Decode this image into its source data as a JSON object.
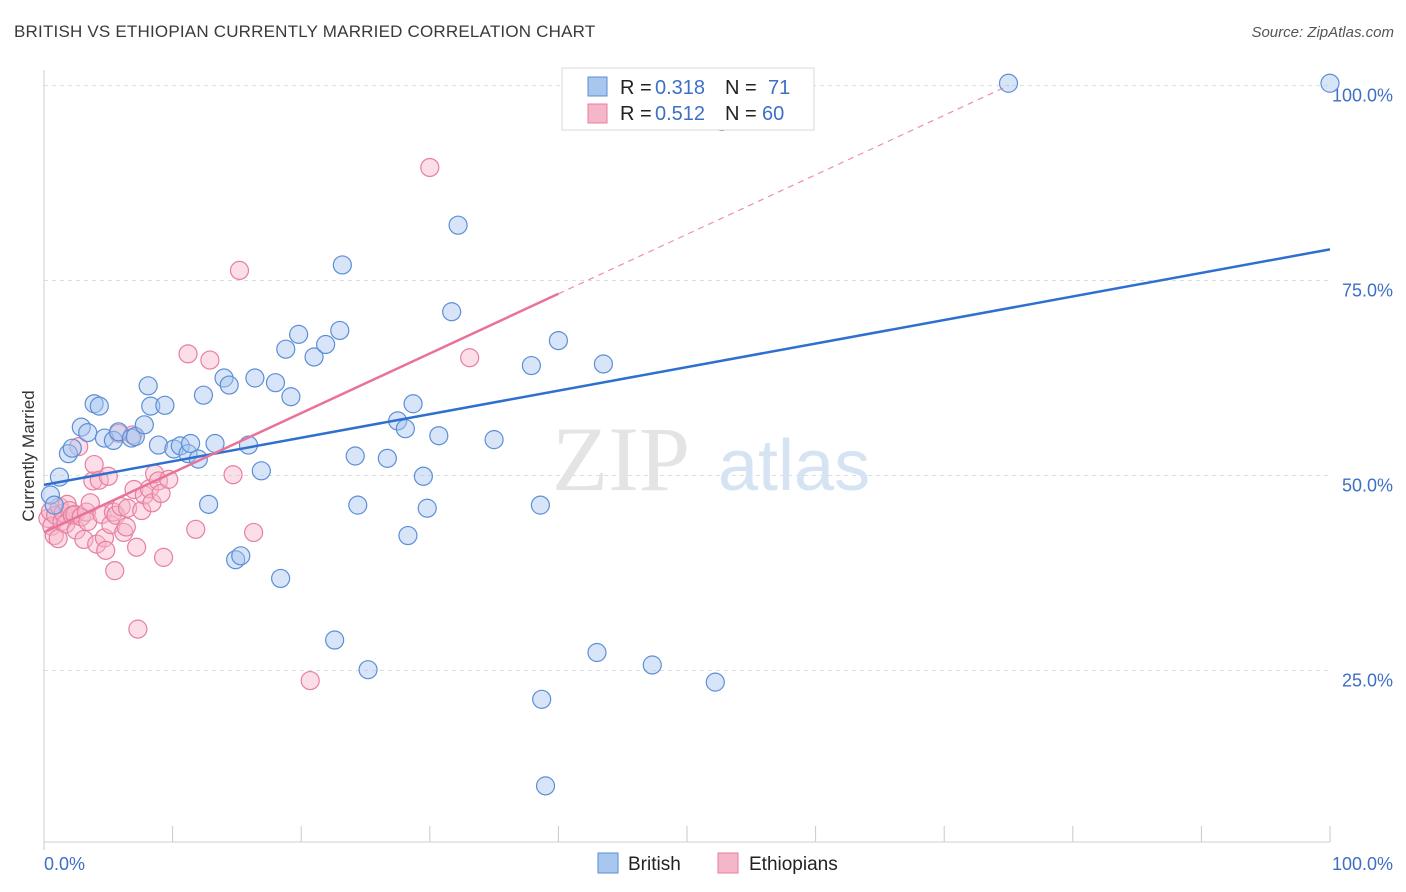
{
  "header": {
    "title": "BRITISH VS ETHIOPIAN CURRENTLY MARRIED CORRELATION CHART",
    "source": "Source: ZipAtlas.com"
  },
  "watermark": {
    "zip": "ZIP",
    "atlas": "atlas"
  },
  "legend_top": [
    {
      "r_label": "R =",
      "r_value": "0.318",
      "n_label": "N =",
      "n_value": "71"
    },
    {
      "r_label": "R =",
      "r_value": "0.512",
      "n_label": "N =",
      "n_value": "60"
    }
  ],
  "legend_bottom": {
    "british": "British",
    "ethiopians": "Ethiopians"
  },
  "colors": {
    "british_fill": "#a9c6ef",
    "british_stroke": "#5b8fd6",
    "british_line": "#2f6fd0",
    "ethiopian_fill": "#f6b6c9",
    "ethiopian_stroke": "#e87ea0",
    "ethiopian_line": "#e8729a",
    "grid": "#dddddd",
    "tick_label": "#3d6fc6"
  },
  "chart_data": {
    "type": "scatter",
    "title": "BRITISH VS ETHIOPIAN CURRENTLY MARRIED CORRELATION CHART",
    "xlabel": "",
    "ylabel": "Currently Married",
    "xlim": [
      0,
      100
    ],
    "ylim": [
      3,
      102
    ],
    "x_tick_labels": [
      "0.0%",
      "100.0%"
    ],
    "y_ticks": [
      25,
      50,
      75,
      100
    ],
    "y_tick_labels": [
      "25.0%",
      "50.0%",
      "75.0%",
      "100.0%"
    ],
    "grid": true,
    "series": [
      {
        "name": "British",
        "r": 0.318,
        "n": 71,
        "trend": {
          "x": [
            0,
            100
          ],
          "y": [
            48.8,
            79.0
          ],
          "dashed_extension": false
        },
        "points": [
          [
            0.5,
            47.5
          ],
          [
            0.8,
            46.2
          ],
          [
            1.2,
            49.8
          ],
          [
            1.9,
            52.8
          ],
          [
            2.2,
            53.5
          ],
          [
            2.9,
            56.2
          ],
          [
            3.4,
            55.5
          ],
          [
            3.9,
            59.2
          ],
          [
            4.3,
            58.9
          ],
          [
            4.7,
            54.8
          ],
          [
            5.4,
            54.5
          ],
          [
            5.8,
            55.6
          ],
          [
            6.8,
            54.8
          ],
          [
            7.1,
            55.0
          ],
          [
            7.8,
            56.5
          ],
          [
            8.1,
            61.5
          ],
          [
            8.3,
            58.9
          ],
          [
            8.9,
            53.9
          ],
          [
            9.4,
            59.0
          ],
          [
            10.1,
            53.4
          ],
          [
            10.6,
            53.8
          ],
          [
            11.2,
            52.8
          ],
          [
            11.4,
            54.1
          ],
          [
            12.0,
            52.1
          ],
          [
            12.4,
            60.3
          ],
          [
            12.8,
            46.3
          ],
          [
            13.3,
            54.1
          ],
          [
            14.0,
            62.5
          ],
          [
            14.4,
            61.6
          ],
          [
            14.9,
            39.2
          ],
          [
            15.3,
            39.7
          ],
          [
            15.9,
            53.9
          ],
          [
            16.4,
            62.5
          ],
          [
            16.9,
            50.6
          ],
          [
            18.0,
            61.9
          ],
          [
            18.4,
            36.8
          ],
          [
            18.8,
            66.2
          ],
          [
            19.2,
            60.1
          ],
          [
            19.8,
            68.1
          ],
          [
            21.0,
            65.2
          ],
          [
            21.9,
            66.8
          ],
          [
            22.6,
            28.9
          ],
          [
            23.0,
            68.6
          ],
          [
            23.2,
            77.0
          ],
          [
            24.2,
            52.5
          ],
          [
            24.4,
            46.2
          ],
          [
            25.2,
            25.1
          ],
          [
            26.7,
            52.2
          ],
          [
            27.5,
            57.0
          ],
          [
            28.1,
            56.0
          ],
          [
            28.3,
            42.3
          ],
          [
            28.7,
            59.2
          ],
          [
            29.5,
            49.9
          ],
          [
            29.8,
            45.8
          ],
          [
            30.7,
            55.1
          ],
          [
            31.7,
            71.0
          ],
          [
            32.2,
            82.1
          ],
          [
            35.0,
            54.6
          ],
          [
            37.9,
            64.1
          ],
          [
            38.6,
            46.2
          ],
          [
            38.7,
            21.3
          ],
          [
            39.0,
            10.2
          ],
          [
            40.0,
            67.3
          ],
          [
            43.0,
            27.3
          ],
          [
            43.5,
            64.3
          ],
          [
            47.3,
            25.7
          ],
          [
            49.5,
            100.3
          ],
          [
            52.2,
            23.5
          ],
          [
            52.7,
            95.4
          ],
          [
            75.0,
            100.3
          ],
          [
            100.0,
            100.3
          ]
        ]
      },
      {
        "name": "Ethiopians",
        "r": 0.512,
        "n": 60,
        "trend": {
          "x": [
            0,
            40.0
          ],
          "y": [
            42.7,
            73.3
          ],
          "dashed_extension": true,
          "dashed_to": [
            75.0,
            100.0
          ]
        },
        "points": [
          [
            0.3,
            44.5
          ],
          [
            0.5,
            45.4
          ],
          [
            0.6,
            43.5
          ],
          [
            0.8,
            42.3
          ],
          [
            0.9,
            44.9
          ],
          [
            1.1,
            41.9
          ],
          [
            1.2,
            46.0
          ],
          [
            1.4,
            44.1
          ],
          [
            1.5,
            45.2
          ],
          [
            1.7,
            43.8
          ],
          [
            1.8,
            46.3
          ],
          [
            2.0,
            45.5
          ],
          [
            2.2,
            44.9
          ],
          [
            2.4,
            45.0
          ],
          [
            2.5,
            43.0
          ],
          [
            2.7,
            53.7
          ],
          [
            2.9,
            44.7
          ],
          [
            3.1,
            41.8
          ],
          [
            3.3,
            45.3
          ],
          [
            3.4,
            44.1
          ],
          [
            3.6,
            46.5
          ],
          [
            3.8,
            49.3
          ],
          [
            3.9,
            51.4
          ],
          [
            4.1,
            41.2
          ],
          [
            4.3,
            49.4
          ],
          [
            4.5,
            45.0
          ],
          [
            4.7,
            42.0
          ],
          [
            4.8,
            40.4
          ],
          [
            5.0,
            49.9
          ],
          [
            5.2,
            43.7
          ],
          [
            5.4,
            45.3
          ],
          [
            5.5,
            37.8
          ],
          [
            5.6,
            44.9
          ],
          [
            5.8,
            55.4
          ],
          [
            6.0,
            46.0
          ],
          [
            6.2,
            42.7
          ],
          [
            6.4,
            43.4
          ],
          [
            6.5,
            45.8
          ],
          [
            6.9,
            55.2
          ],
          [
            7.0,
            48.2
          ],
          [
            7.2,
            40.8
          ],
          [
            7.3,
            30.3
          ],
          [
            7.6,
            45.5
          ],
          [
            7.8,
            47.5
          ],
          [
            8.2,
            48.3
          ],
          [
            8.4,
            46.5
          ],
          [
            8.6,
            50.2
          ],
          [
            8.9,
            49.3
          ],
          [
            9.1,
            47.7
          ],
          [
            9.3,
            39.5
          ],
          [
            9.7,
            49.5
          ],
          [
            11.2,
            65.6
          ],
          [
            11.8,
            43.1
          ],
          [
            12.9,
            64.8
          ],
          [
            14.7,
            50.1
          ],
          [
            15.2,
            76.3
          ],
          [
            16.3,
            42.7
          ],
          [
            20.7,
            23.7
          ],
          [
            30.0,
            89.5
          ],
          [
            33.1,
            65.1
          ]
        ]
      }
    ]
  }
}
